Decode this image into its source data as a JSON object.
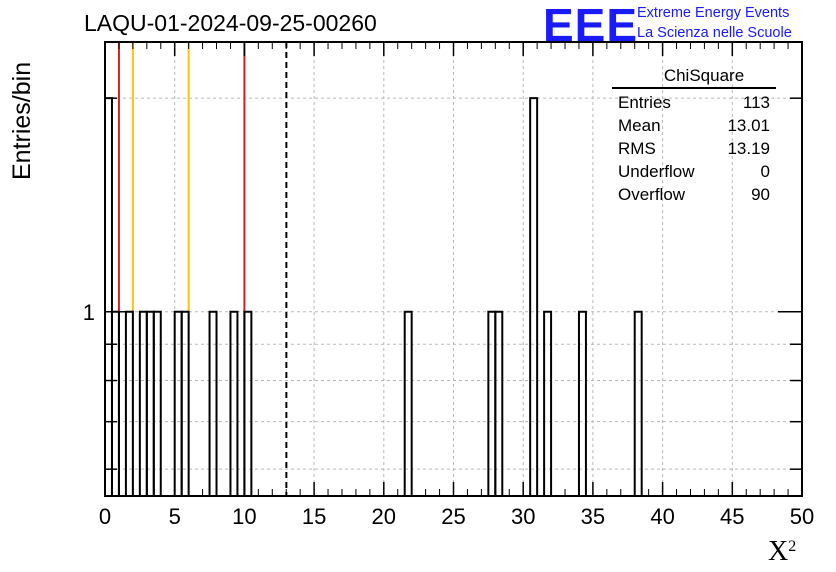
{
  "chart_data": {
    "type": "bar",
    "title": "LAQU-01-2024-09-25-00260",
    "xlabel": "X",
    "xlabel_superscript": "2",
    "ylabel": "Entries/bin",
    "xlim": [
      0,
      50
    ],
    "ylim": [
      0.55,
      2.4
    ],
    "y_scale": "log",
    "grid": true,
    "x_ticks": [
      "0",
      "5",
      "10",
      "15",
      "20",
      "25",
      "30",
      "35",
      "40",
      "45",
      "50"
    ],
    "y_tick_labels": [
      {
        "value": 1,
        "label": "1"
      }
    ],
    "bin_width": 0.5,
    "bins": [
      {
        "x0": 0.0,
        "count": 2
      },
      {
        "x0": 0.5,
        "count": 1
      },
      {
        "x0": 1.5,
        "count": 1
      },
      {
        "x0": 2.5,
        "count": 1
      },
      {
        "x0": 3.0,
        "count": 1
      },
      {
        "x0": 3.5,
        "count": 1
      },
      {
        "x0": 5.0,
        "count": 1
      },
      {
        "x0": 5.5,
        "count": 1
      },
      {
        "x0": 7.5,
        "count": 1
      },
      {
        "x0": 9.0,
        "count": 1
      },
      {
        "x0": 10.0,
        "count": 1
      },
      {
        "x0": 21.5,
        "count": 1
      },
      {
        "x0": 27.5,
        "count": 1
      },
      {
        "x0": 28.0,
        "count": 1
      },
      {
        "x0": 30.5,
        "count": 2
      },
      {
        "x0": 31.5,
        "count": 1
      },
      {
        "x0": 34.0,
        "count": 1
      },
      {
        "x0": 38.0,
        "count": 1
      }
    ],
    "vertical_lines": [
      {
        "x": 1.0,
        "color": "#d42020",
        "style": "solid"
      },
      {
        "x": 2.0,
        "color": "#f5c518",
        "style": "solid"
      },
      {
        "x": 6.0,
        "color": "#f5c518",
        "style": "solid"
      },
      {
        "x": 10.0,
        "color": "#d42020",
        "style": "solid"
      },
      {
        "x": 13.01,
        "color": "#000000",
        "style": "dashed"
      }
    ],
    "stats": {
      "name": "ChiSquare",
      "rows": [
        {
          "label": "Entries",
          "value": "113"
        },
        {
          "label": "Mean",
          "value": "13.01"
        },
        {
          "label": "RMS",
          "value": "13.19"
        },
        {
          "label": "Underflow",
          "value": "0"
        },
        {
          "label": "Overflow",
          "value": "90"
        }
      ]
    }
  },
  "logo": {
    "mark": "EEE",
    "line1": "Extreme Energy Events",
    "line2": "La Scienza nelle Scuole",
    "color": "#1a1aff"
  }
}
